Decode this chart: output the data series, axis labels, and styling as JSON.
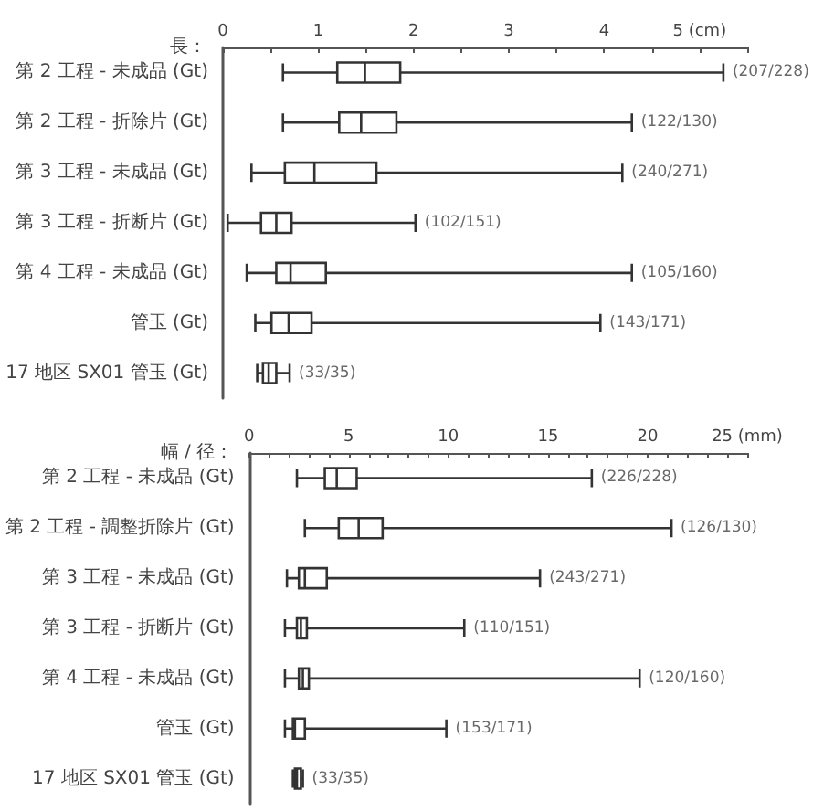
{
  "chart_data": [
    {
      "type": "box",
      "orientation": "horizontal",
      "xlabel": "長：",
      "categories": [
        "第 2 工程 - 未成品 (Gt)",
        "第 2 工程 - 折除片 (Gt)",
        "第 3 工程 - 未成品 (Gt)",
        "第 3 工程 - 折断片 (Gt)",
        "第 4 工程 - 未成品 (Gt)",
        "管玉 (Gt)",
        "17 地区 SX01 管玉 (Gt)"
      ],
      "series": [
        {
          "color": "#333333",
          "boxes": [
            {
              "low": 0.63,
              "q1": 1.2,
              "median": 1.49,
              "q3": 1.86,
              "high": 5.25
            },
            {
              "low": 0.63,
              "q1": 1.22,
              "median": 1.45,
              "q3": 1.82,
              "high": 4.29
            },
            {
              "low": 0.3,
              "q1": 0.65,
              "median": 0.96,
              "q3": 1.61,
              "high": 4.19
            },
            {
              "low": 0.05,
              "q1": 0.4,
              "median": 0.56,
              "q3": 0.72,
              "high": 2.02
            },
            {
              "low": 0.25,
              "q1": 0.56,
              "median": 0.71,
              "q3": 1.08,
              "high": 4.29
            },
            {
              "low": 0.34,
              "q1": 0.51,
              "median": 0.69,
              "q3": 0.93,
              "high": 3.96
            },
            {
              "low": 0.36,
              "q1": 0.42,
              "median": 0.48,
              "q3": 0.56,
              "high": 0.7
            }
          ]
        }
      ],
      "xlim": [
        0,
        5.5
      ],
      "xticks": [
        0,
        {
          "value": 0.5,
          "label": null
        },
        1,
        {
          "value": 1.5,
          "label": null
        },
        2,
        {
          "value": 2.5,
          "label": null
        },
        3,
        {
          "value": 3.5,
          "label": null
        },
        4,
        {
          "value": 4.5,
          "label": null
        },
        {
          "value": 5,
          "label": "5 (cm)"
        },
        {
          "value": 5.5,
          "label": null
        }
      ],
      "annotations": [
        {
          "text": "(207/228)",
          "x": 5.25,
          "y": "第 2 工程 - 未成品 (Gt)"
        },
        {
          "text": "(122/130)",
          "x": 4.29,
          "y": "第 2 工程 - 折除片 (Gt)"
        },
        {
          "text": "(240/271)",
          "x": 4.19,
          "y": "第 3 工程 - 未成品 (Gt)"
        },
        {
          "text": "(102/151)",
          "x": 2.02,
          "y": "第 3 工程 - 折断片 (Gt)"
        },
        {
          "text": "(105/160)",
          "x": 4.29,
          "y": "第 4 工程 - 未成品 (Gt)"
        },
        {
          "text": "(143/171)",
          "x": 3.96,
          "y": "管玉 (Gt)"
        },
        {
          "text": "(33/35)",
          "x": 0.7,
          "y": "17 地区 SX01 管玉 (Gt)"
        }
      ],
      "grid": false
    },
    {
      "type": "box",
      "orientation": "horizontal",
      "xlabel": "幅 / 径：",
      "categories": [
        "第 2 工程 - 未成品 (Gt)",
        "第 2 工程 - 調整折除片 (Gt)",
        "第 3 工程 - 未成品 (Gt)",
        "第 3 工程 - 折断片 (Gt)",
        "第 4 工程 - 未成品 (Gt)",
        "管玉 (Gt)",
        "17 地区 SX01 管玉 (Gt)"
      ],
      "series": [
        {
          "color": "#333333",
          "boxes": [
            {
              "low": 2.4,
              "q1": 3.8,
              "median": 4.4,
              "q3": 5.4,
              "high": 17.2
            },
            {
              "low": 2.8,
              "q1": 4.5,
              "median": 5.5,
              "q3": 6.7,
              "high": 21.2
            },
            {
              "low": 1.9,
              "q1": 2.5,
              "median": 2.8,
              "q3": 3.9,
              "high": 14.6
            },
            {
              "low": 1.8,
              "q1": 2.4,
              "median": 2.6,
              "q3": 2.9,
              "high": 10.8
            },
            {
              "low": 1.8,
              "q1": 2.5,
              "median": 2.7,
              "q3": 3.0,
              "high": 19.6
            },
            {
              "low": 1.8,
              "q1": 2.2,
              "median": 2.3,
              "q3": 2.8,
              "high": 9.9
            },
            {
              "low": 2.2,
              "q1": 2.3,
              "median": 2.4,
              "q3": 2.6,
              "high": 2.7
            }
          ]
        }
      ],
      "xlim": [
        0,
        25
      ],
      "xticks": [
        0,
        {
          "value": 1,
          "label": null
        },
        {
          "value": 2,
          "label": null
        },
        {
          "value": 3,
          "label": null
        },
        {
          "value": 4,
          "label": null
        },
        5,
        {
          "value": 6,
          "label": null
        },
        {
          "value": 7,
          "label": null
        },
        {
          "value": 8,
          "label": null
        },
        {
          "value": 9,
          "label": null
        },
        10,
        {
          "value": 11,
          "label": null
        },
        {
          "value": 12,
          "label": null
        },
        {
          "value": 13,
          "label": null
        },
        {
          "value": 14,
          "label": null
        },
        15,
        {
          "value": 16,
          "label": null
        },
        {
          "value": 17,
          "label": null
        },
        {
          "value": 18,
          "label": null
        },
        {
          "value": 19,
          "label": null
        },
        20,
        {
          "value": 21,
          "label": null
        },
        {
          "value": 22,
          "label": null
        },
        {
          "value": 23,
          "label": null
        },
        {
          "value": 24,
          "label": null
        },
        {
          "value": 25,
          "label": "25 (mm)"
        }
      ],
      "annotations": [
        {
          "text": "(226/228)",
          "x": 17.2,
          "y": "第 2 工程 - 未成品 (Gt)"
        },
        {
          "text": "(126/130)",
          "x": 21.2,
          "y": "第 2 工程 - 調整折除片 (Gt)"
        },
        {
          "text": "(243/271)",
          "x": 14.6,
          "y": "第 3 工程 - 未成品 (Gt)"
        },
        {
          "text": "(110/151)",
          "x": 10.8,
          "y": "第 3 工程 - 折断片 (Gt)"
        },
        {
          "text": "(120/160)",
          "x": 19.6,
          "y": "第 4 工程 - 未成品 (Gt)"
        },
        {
          "text": "(153/171)",
          "x": 9.9,
          "y": "管玉 (Gt)"
        },
        {
          "text": "(33/35)",
          "x": 2.7,
          "y": "17 地区 SX01 管玉 (Gt)"
        }
      ],
      "grid": false
    }
  ]
}
